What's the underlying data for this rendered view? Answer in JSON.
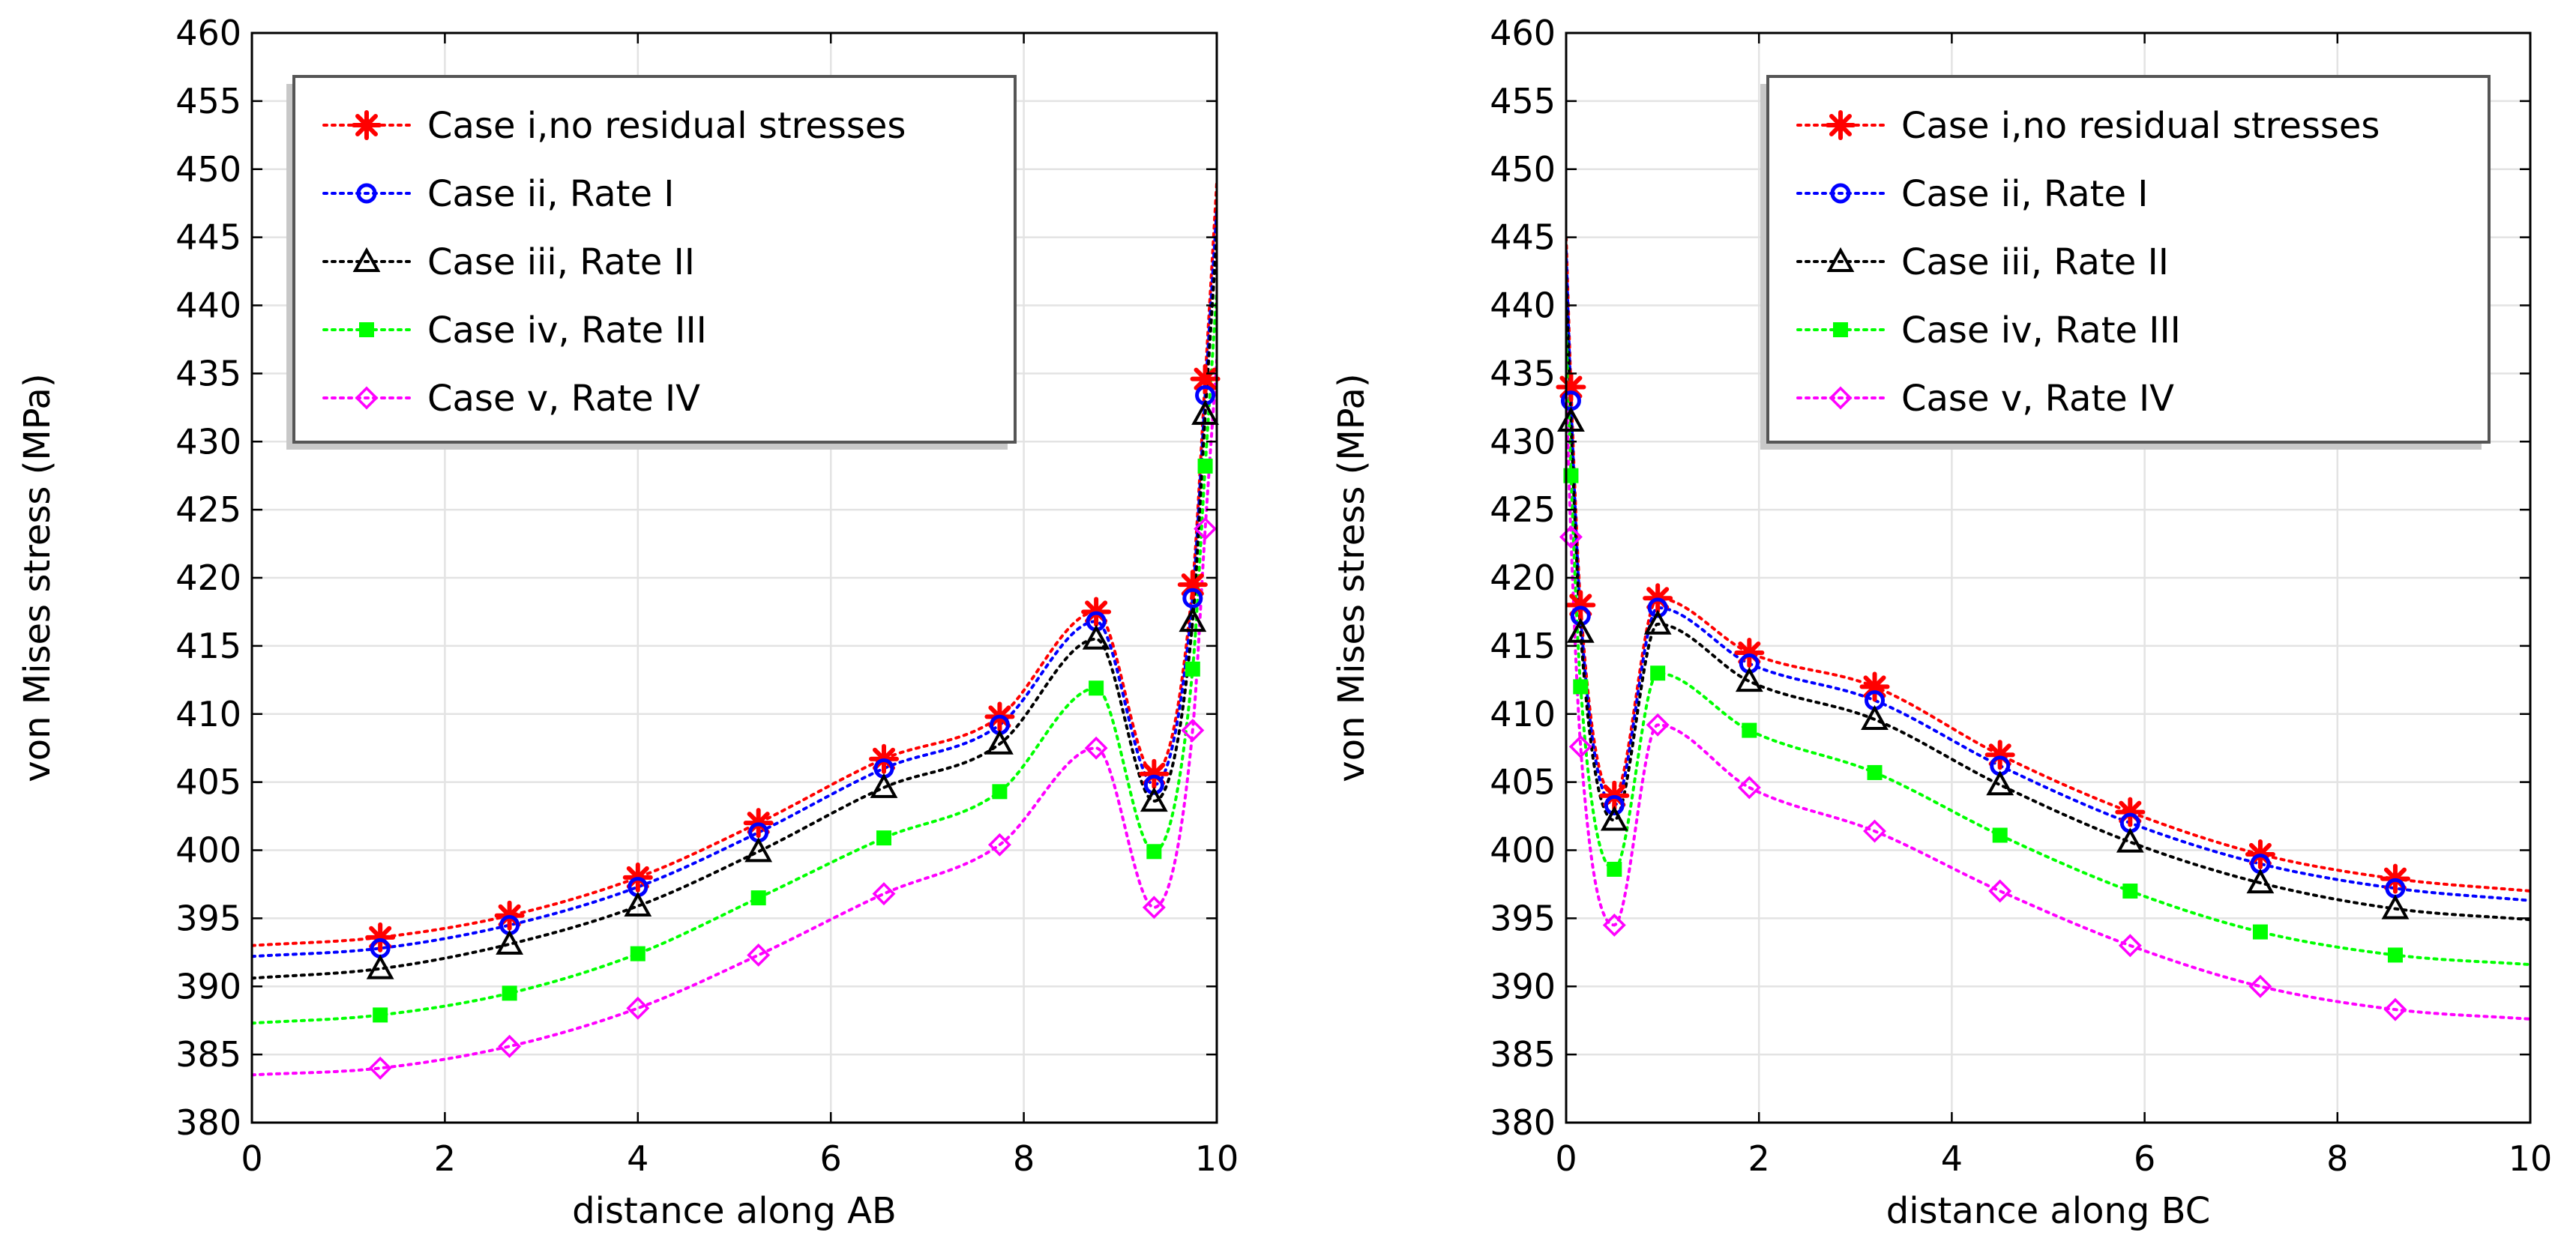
{
  "chart_data": [
    {
      "type": "line",
      "xlabel": "distance along AB",
      "ylabel": "von Mises stress (MPa)",
      "xlim": [
        0,
        10
      ],
      "ylim": [
        380,
        460
      ],
      "xticks": [
        0,
        2,
        4,
        6,
        8,
        10
      ],
      "yticks": [
        380,
        385,
        390,
        395,
        400,
        405,
        410,
        415,
        420,
        425,
        430,
        435,
        440,
        445,
        450,
        455,
        460
      ],
      "grid": true,
      "legend_position": "top-left",
      "series": [
        {
          "name": "Case i,no residual stresses",
          "color": "#ff0000",
          "marker": "asterisk",
          "x": [
            0,
            1.33,
            2.67,
            4.0,
            5.25,
            6.55,
            7.75,
            8.75,
            9.35,
            9.75,
            9.88,
            10.0
          ],
          "y": [
            393.0,
            393.6,
            395.2,
            398.0,
            402.0,
            406.7,
            409.8,
            417.5,
            405.6,
            419.5,
            434.6,
            449.0
          ],
          "marker_x": [
            1.33,
            2.67,
            4.0,
            5.25,
            6.55,
            7.75,
            8.75,
            9.35,
            9.75,
            9.88
          ]
        },
        {
          "name": "Case ii, Rate I",
          "color": "#0000ff",
          "marker": "circle",
          "x": [
            0,
            1.33,
            2.67,
            4.0,
            5.25,
            6.55,
            7.75,
            8.75,
            9.35,
            9.75,
            9.88,
            10.0
          ],
          "y": [
            392.2,
            392.8,
            394.5,
            397.3,
            401.3,
            406.0,
            409.2,
            416.8,
            404.8,
            418.5,
            433.4,
            447.0
          ],
          "marker_x": [
            1.33,
            2.67,
            4.0,
            5.25,
            6.55,
            7.75,
            8.75,
            9.35,
            9.75,
            9.88
          ]
        },
        {
          "name": "Case iii, Rate II",
          "color": "#000000",
          "marker": "triangle",
          "x": [
            0,
            1.33,
            2.67,
            4.0,
            5.25,
            6.55,
            7.75,
            8.75,
            9.35,
            9.75,
            9.88,
            10.0
          ],
          "y": [
            390.6,
            391.3,
            393.1,
            395.9,
            399.9,
            404.6,
            407.8,
            415.5,
            403.6,
            416.8,
            432.0,
            445.0
          ],
          "marker_x": [
            1.33,
            2.67,
            4.0,
            5.25,
            6.55,
            7.75,
            8.75,
            9.35,
            9.75,
            9.88
          ]
        },
        {
          "name": "Case iv, Rate III",
          "color": "#00ff00",
          "marker": "square",
          "x": [
            0,
            1.33,
            2.67,
            4.0,
            5.25,
            6.55,
            7.75,
            8.75,
            9.35,
            9.75,
            9.88,
            10.0
          ],
          "y": [
            387.3,
            387.9,
            389.5,
            392.4,
            396.5,
            400.9,
            404.3,
            411.9,
            399.9,
            413.3,
            428.2,
            441.0
          ],
          "marker_x": [
            1.33,
            2.67,
            4.0,
            5.25,
            6.55,
            7.75,
            8.75,
            9.35,
            9.75,
            9.88
          ]
        },
        {
          "name": "Case v, Rate IV",
          "color": "#ff00ff",
          "marker": "diamond",
          "x": [
            0,
            1.33,
            2.67,
            4.0,
            5.25,
            6.55,
            7.75,
            8.75,
            9.35,
            9.75,
            9.88,
            10.0
          ],
          "y": [
            383.5,
            384.0,
            385.6,
            388.4,
            392.3,
            396.8,
            400.4,
            407.5,
            395.8,
            408.8,
            423.6,
            436.0
          ],
          "marker_x": [
            1.33,
            2.67,
            4.0,
            5.25,
            6.55,
            7.75,
            8.75,
            9.35,
            9.75,
            9.88
          ]
        }
      ]
    },
    {
      "type": "line",
      "xlabel": "distance along BC",
      "ylabel": "von Mises stress (MPa)",
      "xlim": [
        0,
        10
      ],
      "ylim": [
        380,
        460
      ],
      "xticks": [
        0,
        2,
        4,
        6,
        8,
        10
      ],
      "yticks": [
        380,
        385,
        390,
        395,
        400,
        405,
        410,
        415,
        420,
        425,
        430,
        435,
        440,
        445,
        450,
        455,
        460
      ],
      "grid": true,
      "legend_position": "top-right",
      "series": [
        {
          "name": "Case i,no residual stresses",
          "color": "#ff0000",
          "marker": "asterisk",
          "x": [
            0,
            0.05,
            0.15,
            0.5,
            0.95,
            1.9,
            3.2,
            4.5,
            5.85,
            7.2,
            8.6,
            10.0
          ],
          "y": [
            445.0,
            434.0,
            418.0,
            404.0,
            418.5,
            414.5,
            412.0,
            407.0,
            402.8,
            399.7,
            397.9,
            397.0
          ],
          "marker_x": [
            0.05,
            0.15,
            0.5,
            0.95,
            1.9,
            3.2,
            4.5,
            5.85,
            7.2,
            8.6
          ]
        },
        {
          "name": "Case ii, Rate I",
          "color": "#0000ff",
          "marker": "circle",
          "x": [
            0,
            0.05,
            0.15,
            0.5,
            0.95,
            1.9,
            3.2,
            4.5,
            5.85,
            7.2,
            8.6,
            10.0
          ],
          "y": [
            444.0,
            433.0,
            417.2,
            403.3,
            417.8,
            413.7,
            411.0,
            406.2,
            402.0,
            399.0,
            397.2,
            396.3
          ],
          "marker_x": [
            0.05,
            0.15,
            0.5,
            0.95,
            1.9,
            3.2,
            4.5,
            5.85,
            7.2,
            8.6
          ]
        },
        {
          "name": "Case iii, Rate II",
          "color": "#000000",
          "marker": "triangle",
          "x": [
            0,
            0.05,
            0.15,
            0.5,
            0.95,
            1.9,
            3.2,
            4.5,
            5.85,
            7.2,
            8.6,
            10.0
          ],
          "y": [
            442.0,
            431.5,
            416.0,
            402.2,
            416.6,
            412.4,
            409.6,
            404.8,
            400.6,
            397.6,
            395.7,
            394.9
          ],
          "marker_x": [
            0.05,
            0.15,
            0.5,
            0.95,
            1.9,
            3.2,
            4.5,
            5.85,
            7.2,
            8.6
          ]
        },
        {
          "name": "Case iv, Rate III",
          "color": "#00ff00",
          "marker": "square",
          "x": [
            0,
            0.05,
            0.15,
            0.5,
            0.95,
            1.9,
            3.2,
            4.5,
            5.85,
            7.2,
            8.6,
            10.0
          ],
          "y": [
            438.0,
            427.5,
            412.0,
            398.6,
            413.0,
            408.8,
            405.7,
            401.1,
            397.0,
            394.0,
            392.3,
            391.6
          ],
          "marker_x": [
            0.05,
            0.15,
            0.5,
            0.95,
            1.9,
            3.2,
            4.5,
            5.85,
            7.2,
            8.6
          ]
        },
        {
          "name": "Case v, Rate IV",
          "color": "#ff00ff",
          "marker": "diamond",
          "x": [
            0,
            0.05,
            0.15,
            0.5,
            0.95,
            1.9,
            3.2,
            4.5,
            5.85,
            7.2,
            8.6,
            10.0
          ],
          "y": [
            434.0,
            423.0,
            407.6,
            394.5,
            409.2,
            404.6,
            401.4,
            397.0,
            393.0,
            390.0,
            388.3,
            387.6
          ],
          "marker_x": [
            0.05,
            0.15,
            0.5,
            0.95,
            1.9,
            3.2,
            4.5,
            5.85,
            7.2,
            8.6
          ]
        }
      ]
    }
  ]
}
